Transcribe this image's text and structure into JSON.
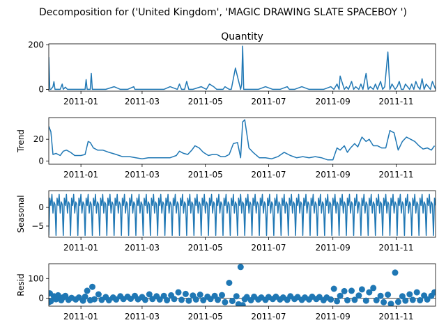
{
  "figure": {
    "suptitle": "Decomposition for ('United Kingdom', 'MAGIC DRAWING SLATE SPACEBOY ')",
    "line_color": "#1f77b4"
  },
  "chart_data": [
    {
      "type": "line",
      "title": "Quantity",
      "ylabel": "",
      "xlim": [
        "2010-12-01",
        "2011-12-09"
      ],
      "ylim": [
        -8,
        205
      ],
      "yticks": [
        0,
        200
      ],
      "xticks": [
        "2011-01-01",
        "2011-03-01",
        "2011-05-01",
        "2011-07-01",
        "2011-09-01",
        "2011-11-01"
      ],
      "xtick_labels": [
        "2011-01",
        "2011-03",
        "2011-05",
        "2011-07",
        "2011-09",
        "2011-11"
      ],
      "show_xtick_labels": true,
      "series": [
        {
          "x": [
            "2010-12-01",
            "2010-12-02",
            "2010-12-03",
            "2010-12-05",
            "2010-12-06",
            "2010-12-07",
            "2010-12-09",
            "2010-12-12",
            "2010-12-14",
            "2010-12-15",
            "2010-12-17",
            "2010-12-19",
            "2011-01-05",
            "2011-01-06",
            "2011-01-07",
            "2011-01-10",
            "2011-01-11",
            "2011-01-12",
            "2011-01-18",
            "2011-01-25",
            "2011-02-02",
            "2011-02-08",
            "2011-02-15",
            "2011-02-21",
            "2011-02-22",
            "2011-03-01",
            "2011-03-08",
            "2011-03-15",
            "2011-03-22",
            "2011-03-28",
            "2011-04-04",
            "2011-04-06",
            "2011-04-08",
            "2011-04-11",
            "2011-04-13",
            "2011-04-15",
            "2011-04-19",
            "2011-04-27",
            "2011-05-02",
            "2011-05-05",
            "2011-05-09",
            "2011-05-12",
            "2011-05-16",
            "2011-05-18",
            "2011-05-20",
            "2011-05-24",
            "2011-05-26",
            "2011-05-30",
            "2011-06-04",
            "2011-06-05",
            "2011-06-06",
            "2011-06-07",
            "2011-06-08",
            "2011-06-14",
            "2011-06-21",
            "2011-06-28",
            "2011-07-05",
            "2011-07-12",
            "2011-07-19",
            "2011-07-21",
            "2011-07-26",
            "2011-08-02",
            "2011-08-09",
            "2011-08-16",
            "2011-08-23",
            "2011-08-30",
            "2011-09-02",
            "2011-09-05",
            "2011-09-07",
            "2011-09-08",
            "2011-09-12",
            "2011-09-14",
            "2011-09-16",
            "2011-09-19",
            "2011-09-21",
            "2011-09-23",
            "2011-09-26",
            "2011-09-28",
            "2011-09-30",
            "2011-10-03",
            "2011-10-05",
            "2011-10-07",
            "2011-10-10",
            "2011-10-12",
            "2011-10-14",
            "2011-10-17",
            "2011-10-19",
            "2011-10-21",
            "2011-10-24",
            "2011-10-26",
            "2011-10-28",
            "2011-10-31",
            "2011-11-02",
            "2011-11-04",
            "2011-11-06",
            "2011-11-08",
            "2011-11-10",
            "2011-11-12",
            "2011-11-14",
            "2011-11-16",
            "2011-11-18",
            "2011-11-20",
            "2011-11-22",
            "2011-11-24",
            "2011-11-26",
            "2011-11-28",
            "2011-11-30",
            "2011-12-02",
            "2011-12-04",
            "2011-12-06",
            "2011-12-08",
            "2011-12-09"
          ],
          "y": [
            145,
            0,
            0,
            12,
            35,
            0,
            0,
            0,
            24,
            0,
            10,
            0,
            0,
            44,
            0,
            0,
            72,
            0,
            0,
            0,
            12,
            0,
            0,
            12,
            0,
            0,
            0,
            0,
            0,
            12,
            0,
            24,
            0,
            0,
            36,
            0,
            0,
            12,
            0,
            24,
            12,
            0,
            0,
            0,
            12,
            0,
            0,
            96,
            0,
            24,
            195,
            0,
            0,
            0,
            0,
            12,
            0,
            0,
            12,
            0,
            0,
            12,
            0,
            0,
            0,
            12,
            0,
            24,
            0,
            60,
            0,
            12,
            0,
            36,
            0,
            12,
            0,
            24,
            0,
            72,
            0,
            12,
            0,
            24,
            0,
            36,
            0,
            12,
            168,
            0,
            24,
            0,
            12,
            36,
            0,
            0,
            24,
            12,
            0,
            24,
            0,
            36,
            12,
            0,
            48,
            0,
            24,
            12,
            0,
            36,
            12,
            0
          ]
        }
      ]
    },
    {
      "type": "line",
      "title": "",
      "ylabel": "Trend",
      "xlim": [
        "2010-12-01",
        "2011-12-09"
      ],
      "ylim": [
        -3,
        40
      ],
      "yticks": [
        0,
        20
      ],
      "xticks": [
        "2011-01-01",
        "2011-03-01",
        "2011-05-01",
        "2011-07-01",
        "2011-09-01",
        "2011-11-01"
      ],
      "xtick_labels": [
        "2011-01",
        "2011-03",
        "2011-05",
        "2011-07",
        "2011-09",
        "2011-11"
      ],
      "show_xtick_labels": true,
      "series": [
        {
          "x": [
            "2010-12-01",
            "2010-12-03",
            "2010-12-05",
            "2010-12-08",
            "2010-12-12",
            "2010-12-15",
            "2010-12-18",
            "2010-12-22",
            "2010-12-26",
            "2011-01-01",
            "2011-01-05",
            "2011-01-08",
            "2011-01-10",
            "2011-01-13",
            "2011-01-17",
            "2011-01-22",
            "2011-01-28",
            "2011-02-04",
            "2011-02-10",
            "2011-02-17",
            "2011-02-23",
            "2011-03-01",
            "2011-03-07",
            "2011-03-14",
            "2011-03-21",
            "2011-03-28",
            "2011-04-03",
            "2011-04-06",
            "2011-04-10",
            "2011-04-14",
            "2011-04-18",
            "2011-04-21",
            "2011-04-25",
            "2011-04-29",
            "2011-05-04",
            "2011-05-08",
            "2011-05-12",
            "2011-05-16",
            "2011-05-20",
            "2011-05-24",
            "2011-05-28",
            "2011-06-01",
            "2011-06-04",
            "2011-06-06",
            "2011-06-08",
            "2011-06-12",
            "2011-06-16",
            "2011-06-22",
            "2011-06-28",
            "2011-07-04",
            "2011-07-10",
            "2011-07-16",
            "2011-07-22",
            "2011-07-28",
            "2011-08-03",
            "2011-08-09",
            "2011-08-15",
            "2011-08-21",
            "2011-08-27",
            "2011-09-01",
            "2011-09-05",
            "2011-09-08",
            "2011-09-12",
            "2011-09-15",
            "2011-09-18",
            "2011-09-22",
            "2011-09-25",
            "2011-09-29",
            "2011-10-03",
            "2011-10-06",
            "2011-10-10",
            "2011-10-14",
            "2011-10-18",
            "2011-10-22",
            "2011-10-26",
            "2011-10-30",
            "2011-11-03",
            "2011-11-07",
            "2011-11-11",
            "2011-11-15",
            "2011-11-19",
            "2011-11-23",
            "2011-11-27",
            "2011-12-01",
            "2011-12-05",
            "2011-12-08"
          ],
          "y": [
            32,
            27,
            6,
            7,
            5,
            9,
            10,
            8,
            5,
            5,
            6,
            18,
            17,
            12,
            10,
            10,
            8,
            6,
            4,
            4,
            3,
            2,
            3,
            3,
            3,
            3,
            5,
            9,
            7,
            6,
            10,
            14,
            12,
            8,
            5,
            6,
            6,
            4,
            4,
            6,
            16,
            17,
            3,
            36,
            38,
            12,
            8,
            3,
            3,
            2,
            4,
            8,
            5,
            3,
            4,
            3,
            4,
            3,
            1,
            1,
            12,
            10,
            14,
            8,
            12,
            16,
            13,
            22,
            18,
            20,
            14,
            14,
            12,
            12,
            28,
            26,
            10,
            18,
            22,
            20,
            18,
            14,
            11,
            12,
            10,
            14
          ]
        }
      ]
    },
    {
      "type": "line",
      "title": "",
      "ylabel": "Seasonal",
      "xlim": [
        "2010-12-01",
        "2011-12-09"
      ],
      "ylim": [
        -8,
        4.5
      ],
      "yticks": [
        -5,
        0
      ],
      "xticks": [
        "2011-01-01",
        "2011-03-01",
        "2011-05-01",
        "2011-07-01",
        "2011-09-01",
        "2011-11-01"
      ],
      "xtick_labels": [
        "2011-01",
        "2011-03",
        "2011-05",
        "2011-07",
        "2011-09",
        "2011-11"
      ],
      "show_xtick_labels": true,
      "series": [
        {
          "start": "2010-12-01",
          "end": "2011-12-09",
          "pattern": [
            -7.5,
            2.5,
            0.5,
            3.5,
            -1.5,
            1.5,
            0.8
          ]
        }
      ]
    },
    {
      "type": "scatter",
      "title": "",
      "ylabel": "Resid",
      "xlim": [
        "2010-12-01",
        "2011-12-09"
      ],
      "ylim": [
        -40,
        175
      ],
      "yticks": [
        0,
        100
      ],
      "xticks": [
        "2011-01-01",
        "2011-03-01",
        "2011-05-01",
        "2011-07-01",
        "2011-09-01",
        "2011-11-01"
      ],
      "xtick_labels": [
        "2011-01",
        "2011-03",
        "2011-05",
        "2011-07",
        "2011-09",
        "2011-11"
      ],
      "show_xtick_labels": true,
      "baseline": 0,
      "series": [
        {
          "x": [
            "2010-12-01",
            "2010-12-02",
            "2010-12-03",
            "2010-12-06",
            "2010-12-08",
            "2010-12-10",
            "2010-12-13",
            "2010-12-15",
            "2010-12-17",
            "2010-12-20",
            "2010-12-23",
            "2010-12-27",
            "2010-12-30",
            "2011-01-03",
            "2011-01-05",
            "2011-01-07",
            "2011-01-10",
            "2011-01-12",
            "2011-01-14",
            "2011-01-18",
            "2011-01-21",
            "2011-01-25",
            "2011-01-28",
            "2011-02-01",
            "2011-02-04",
            "2011-02-08",
            "2011-02-11",
            "2011-02-15",
            "2011-02-18",
            "2011-02-22",
            "2011-02-25",
            "2011-03-01",
            "2011-03-04",
            "2011-03-08",
            "2011-03-11",
            "2011-03-15",
            "2011-03-18",
            "2011-03-22",
            "2011-03-25",
            "2011-03-29",
            "2011-04-01",
            "2011-04-05",
            "2011-04-08",
            "2011-04-12",
            "2011-04-15",
            "2011-04-19",
            "2011-04-22",
            "2011-04-26",
            "2011-04-29",
            "2011-05-03",
            "2011-05-06",
            "2011-05-10",
            "2011-05-13",
            "2011-05-17",
            "2011-05-20",
            "2011-05-24",
            "2011-05-27",
            "2011-05-31",
            "2011-06-02",
            "2011-06-04",
            "2011-06-06",
            "2011-06-08",
            "2011-06-10",
            "2011-06-14",
            "2011-06-17",
            "2011-06-21",
            "2011-06-24",
            "2011-06-28",
            "2011-07-01",
            "2011-07-05",
            "2011-07-08",
            "2011-07-12",
            "2011-07-15",
            "2011-07-19",
            "2011-07-22",
            "2011-07-26",
            "2011-07-29",
            "2011-08-02",
            "2011-08-05",
            "2011-08-09",
            "2011-08-12",
            "2011-08-16",
            "2011-08-19",
            "2011-08-23",
            "2011-08-26",
            "2011-08-30",
            "2011-09-02",
            "2011-09-05",
            "2011-09-08",
            "2011-09-12",
            "2011-09-15",
            "2011-09-19",
            "2011-09-22",
            "2011-09-26",
            "2011-09-29",
            "2011-10-03",
            "2011-10-06",
            "2011-10-10",
            "2011-10-13",
            "2011-10-17",
            "2011-10-20",
            "2011-10-24",
            "2011-10-27",
            "2011-10-31",
            "2011-11-03",
            "2011-11-07",
            "2011-11-10",
            "2011-11-14",
            "2011-11-17",
            "2011-11-21",
            "2011-11-24",
            "2011-11-28",
            "2011-12-01",
            "2011-12-05",
            "2011-12-08"
          ],
          "y": [
            -20,
            25,
            -15,
            10,
            -5,
            15,
            -10,
            5,
            12,
            -8,
            2,
            -6,
            4,
            -12,
            8,
            38,
            -10,
            58,
            -5,
            20,
            -8,
            6,
            -10,
            4,
            -6,
            10,
            -4,
            8,
            -3,
            12,
            -5,
            6,
            -8,
            20,
            -4,
            10,
            -6,
            12,
            -10,
            15,
            -4,
            30,
            -8,
            22,
            -12,
            14,
            -6,
            18,
            -10,
            8,
            -4,
            12,
            -8,
            16,
            -20,
            78,
            -14,
            10,
            -30,
            158,
            -35,
            -5,
            6,
            -10,
            8,
            -6,
            4,
            -8,
            6,
            -4,
            8,
            -6,
            4,
            -8,
            10,
            -4,
            6,
            -8,
            4,
            -6,
            8,
            -4,
            6,
            -10,
            4,
            -6,
            48,
            -15,
            12,
            36,
            -10,
            38,
            -8,
            14,
            45,
            -12,
            30,
            52,
            -10,
            12,
            -20,
            18,
            -28,
            130,
            -18,
            10,
            -12,
            20,
            -8,
            30,
            -10,
            14,
            -6,
            12,
            30
          ]
        }
      ]
    }
  ]
}
